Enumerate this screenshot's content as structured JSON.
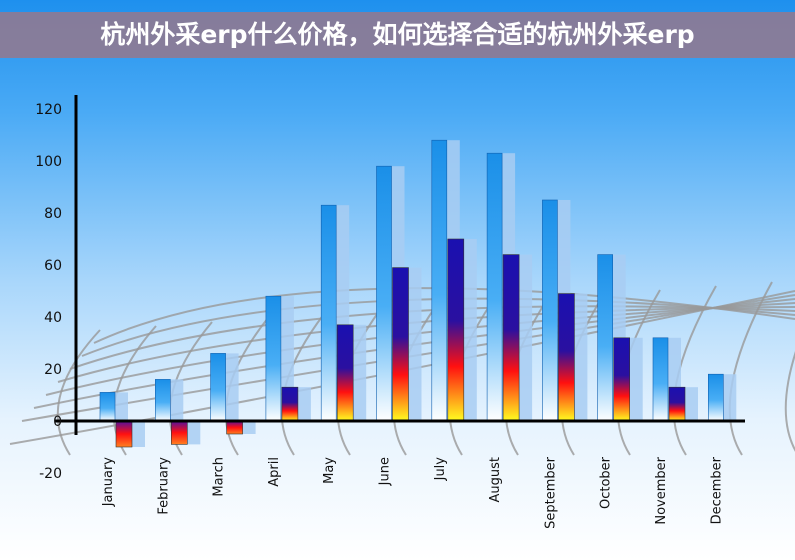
{
  "banner": {
    "title": "杭州外采erp什么价格，如何选择合适的杭州外采erp"
  },
  "chart_data": {
    "type": "bar",
    "title": "",
    "xlabel": "",
    "ylabel": "",
    "ylim": [
      -20,
      120
    ],
    "yticks": [
      "120",
      "100",
      "80",
      "60",
      "40",
      "20",
      "0",
      "-20"
    ],
    "grid": false,
    "categories": [
      "January",
      "February",
      "March",
      "April",
      "May",
      "June",
      "July",
      "August",
      "September",
      "October",
      "November",
      "December"
    ],
    "series": [
      {
        "values": [
          11,
          16,
          26,
          48,
          83,
          98,
          108,
          103,
          85,
          64,
          32,
          18
        ],
        "color": "#1a8fe8"
      },
      {
        "values": [
          -10,
          -9,
          -5,
          13,
          37,
          59,
          70,
          64,
          49,
          32,
          13,
          null
        ],
        "color": "#1a10b0"
      }
    ]
  }
}
